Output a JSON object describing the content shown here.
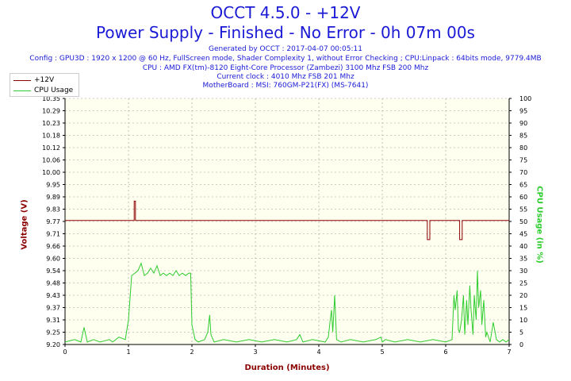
{
  "header": {
    "title": "OCCT 4.5.0 - +12V",
    "subtitle": "Power Supply - Finished - No Error - 0h 07m 00s",
    "info_lines": [
      "Generated by OCCT : 2017-04-07 00:05:11",
      "Config : GPU3D : 1920 x 1200 @ 60 Hz, FullScreen mode, Shader Complexity 1, without Error Checking ; CPU:Linpack : 64bits mode, 9779.4MB",
      "CPU : AMD FX(tm)-8120 Eight-Core Processor (Zambezi) 3100 Mhz FSB 200 Mhz",
      "Current clock : 4010 Mhz FSB 201 Mhz",
      "MotherBoard : MSI: 760GM-P21(FX) (MS-7641)"
    ]
  },
  "colors": {
    "title": "#1a1ad6",
    "voltage": "#8b0000",
    "cpu": "#2ecc2e",
    "plot_bg": "#fffff0",
    "grid": "#999999"
  },
  "chart_data": {
    "type": "line",
    "xlabel": "Duration (Minutes)",
    "ylabel_left": "Voltage (V)",
    "ylabel_right": "CPU Usage (in %)",
    "xlim": [
      0,
      7
    ],
    "ylim_left": [
      9.2,
      10.35
    ],
    "ylim_right": [
      0,
      100
    ],
    "x_ticks": [
      "0",
      "1",
      "2",
      "3",
      "4",
      "5",
      "6",
      "7"
    ],
    "y_ticks_left": [
      "10.35",
      "10.29",
      "10.23",
      "10.18",
      "10.12",
      "10.06",
      "10.00",
      "9.95",
      "9.89",
      "9.83",
      "9.77",
      "9.71",
      "9.66",
      "9.60",
      "9.54",
      "9.48",
      "9.43",
      "9.37",
      "9.31",
      "9.25",
      "9.20"
    ],
    "y_ticks_right": [
      "100",
      "95",
      "90",
      "85",
      "80",
      "75",
      "70",
      "65",
      "60",
      "55",
      "50",
      "45",
      "40",
      "35",
      "30",
      "25",
      "20",
      "15",
      "10",
      "5",
      "0"
    ],
    "legend": [
      "+12V",
      "CPU Usage"
    ],
    "legend_position": "top-left",
    "grid": true,
    "series": [
      {
        "name": "+12V",
        "axis": "left",
        "x": [
          0,
          1.09,
          1.09,
          1.1,
          1.11,
          1.11,
          5.71,
          5.71,
          5.73,
          5.75,
          5.75,
          6.22,
          6.22,
          6.24,
          6.26,
          6.26,
          7
        ],
        "y": [
          9.78,
          9.78,
          9.87,
          9.87,
          9.87,
          9.78,
          9.78,
          9.69,
          9.69,
          9.69,
          9.78,
          9.78,
          9.69,
          9.69,
          9.69,
          9.78,
          9.78
        ]
      },
      {
        "name": "CPU Usage",
        "axis": "right",
        "x": [
          0,
          0.15,
          0.25,
          0.3,
          0.35,
          0.45,
          0.55,
          0.7,
          0.75,
          0.85,
          0.95,
          1.0,
          1.05,
          1.1,
          1.15,
          1.2,
          1.25,
          1.3,
          1.35,
          1.4,
          1.45,
          1.5,
          1.55,
          1.6,
          1.65,
          1.7,
          1.75,
          1.8,
          1.85,
          1.9,
          1.95,
          1.98,
          2.0,
          2.05,
          2.1,
          2.2,
          2.25,
          2.28,
          2.3,
          2.35,
          2.5,
          2.7,
          2.9,
          3.1,
          3.3,
          3.5,
          3.65,
          3.7,
          3.75,
          3.9,
          4.1,
          4.15,
          4.18,
          4.2,
          4.22,
          4.25,
          4.28,
          4.35,
          4.5,
          4.7,
          4.9,
          4.98,
          5.0,
          5.05,
          5.2,
          5.4,
          5.6,
          5.8,
          6.0,
          6.1,
          6.13,
          6.15,
          6.18,
          6.2,
          6.22,
          6.25,
          6.28,
          6.3,
          6.33,
          6.35,
          6.38,
          6.4,
          6.43,
          6.45,
          6.48,
          6.5,
          6.52,
          6.55,
          6.57,
          6.6,
          6.63,
          6.65,
          6.7,
          6.75,
          6.8,
          6.85,
          6.9,
          6.95,
          7.0
        ],
        "y": [
          1,
          2,
          1,
          7,
          1,
          2,
          1,
          2,
          1,
          3,
          2,
          10,
          28,
          29,
          30,
          33,
          28,
          29,
          31,
          29,
          32,
          28,
          29,
          28,
          29,
          28,
          30,
          28,
          29,
          28,
          29,
          29,
          8,
          2,
          1,
          2,
          5,
          12,
          4,
          1,
          2,
          1,
          2,
          1,
          2,
          1,
          2,
          4,
          1,
          2,
          1,
          3,
          10,
          14,
          5,
          20,
          2,
          1,
          2,
          1,
          2,
          3,
          1,
          2,
          1,
          2,
          1,
          2,
          1,
          2,
          20,
          14,
          22,
          6,
          5,
          10,
          20,
          4,
          18,
          8,
          24,
          14,
          4,
          20,
          10,
          30,
          15,
          22,
          8,
          18,
          3,
          5,
          1,
          9,
          2,
          1,
          2,
          1,
          2
        ]
      }
    ]
  }
}
